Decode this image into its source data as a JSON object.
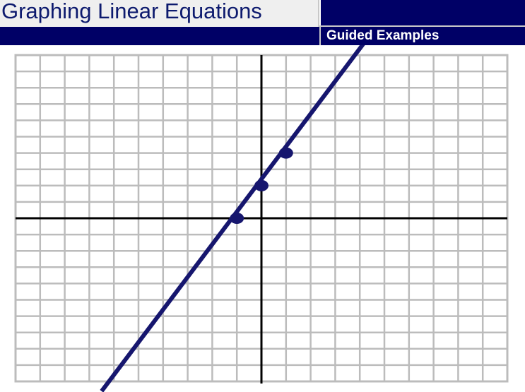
{
  "header": {
    "title": "Graphing Linear Equations",
    "subtitle": "Guided Examples"
  },
  "colors": {
    "brand_navy": "#000066",
    "title_text": "#0d1a6e",
    "line": "#16166e",
    "grid": "#bcbcbc",
    "axis": "#000000"
  },
  "chart_data": {
    "type": "line",
    "title": "",
    "xlabel": "",
    "ylabel": "",
    "xlim": [
      -10,
      10
    ],
    "ylim": [
      -10,
      10
    ],
    "grid": true,
    "grid_step": 1,
    "show_tick_labels": false,
    "series": [
      {
        "x": [
          -6.5,
          4.15
        ],
        "y": [
          -10.6,
          10.7
        ]
      }
    ],
    "points": [
      {
        "x": -1,
        "y": 0
      },
      {
        "x": 0,
        "y": 2
      },
      {
        "x": 1,
        "y": 4
      }
    ]
  }
}
